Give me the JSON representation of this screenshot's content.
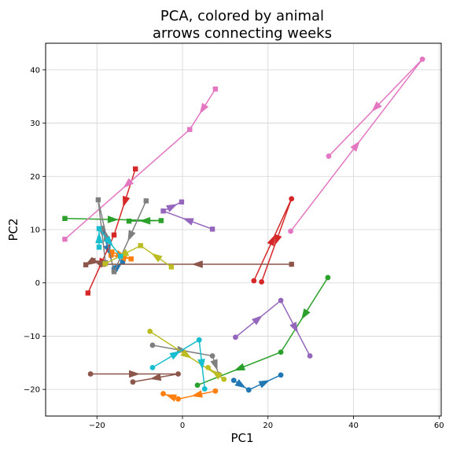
{
  "chart_data": {
    "type": "line",
    "title": "PCA, colored by animal\narrows connecting weeks",
    "xlabel": "PC1",
    "ylabel": "PC2",
    "xlim": [
      -32,
      60.5
    ],
    "ylim": [
      -25,
      45
    ],
    "xticks": [
      -20,
      0,
      20,
      40,
      60
    ],
    "yticks": [
      -20,
      -10,
      0,
      10,
      20,
      30,
      40
    ],
    "grid": true,
    "legend": "none",
    "series": [
      {
        "color": "#1f77b4",
        "marker": "square",
        "points": [
          [
            -18.6,
            9.7
          ],
          [
            -16,
            2.5
          ],
          [
            -14,
            3.9
          ]
        ]
      },
      {
        "color": "#1f77b4",
        "marker": "circle",
        "points": [
          [
            12,
            -18.3
          ],
          [
            15.5,
            -20.1
          ],
          [
            23,
            -17.3
          ]
        ]
      },
      {
        "color": "#ff7f0e",
        "marker": "square",
        "points": [
          [
            -16.5,
            5.8
          ],
          [
            -12,
            4.5
          ],
          [
            -16.7,
            5.2
          ]
        ]
      },
      {
        "color": "#ff7f0e",
        "marker": "circle",
        "points": [
          [
            7.7,
            -20.3
          ],
          [
            -1,
            -21.8
          ],
          [
            -4.5,
            -20.8
          ]
        ]
      },
      {
        "color": "#2ca02c",
        "marker": "square",
        "points": [
          [
            -27.5,
            12.1
          ],
          [
            -5,
            11.7
          ],
          [
            -12.5,
            11.6
          ]
        ]
      },
      {
        "color": "#2ca02c",
        "marker": "circle",
        "points": [
          [
            34,
            1.0
          ],
          [
            23,
            -13
          ],
          [
            3.5,
            -19.2
          ]
        ]
      },
      {
        "color": "#d62728",
        "marker": "square",
        "points": [
          [
            -11,
            21.4
          ],
          [
            -16,
            9.0
          ],
          [
            -22.1,
            -1.9
          ]
        ]
      },
      {
        "color": "#d62728",
        "marker": "circle",
        "points": [
          [
            16.7,
            0.4
          ],
          [
            25.5,
            15.8
          ],
          [
            18.5,
            0.2
          ]
        ]
      },
      {
        "color": "#9467bd",
        "marker": "square",
        "points": [
          [
            7,
            10.1
          ],
          [
            -4.5,
            13.5
          ],
          [
            -0.2,
            15.2
          ]
        ]
      },
      {
        "color": "#9467bd",
        "marker": "circle",
        "points": [
          [
            12.4,
            -10.2
          ],
          [
            23,
            -3.3
          ],
          [
            29.8,
            -13.7
          ]
        ]
      },
      {
        "color": "#8c564b",
        "marker": "square",
        "points": [
          [
            25.5,
            3.5
          ],
          [
            -18.5,
            3.5
          ],
          [
            -20.9,
            4.2
          ],
          [
            -22.6,
            3.4
          ]
        ]
      },
      {
        "color": "#8c564b",
        "marker": "circle",
        "points": [
          [
            -21.5,
            -17.1
          ],
          [
            -1,
            -17.1
          ],
          [
            -11.6,
            -18.6
          ]
        ]
      },
      {
        "color": "#e377c2",
        "marker": "square",
        "points": [
          [
            7.7,
            36.4
          ],
          [
            1.7,
            28.8
          ],
          [
            -27.5,
            8.2
          ]
        ]
      },
      {
        "color": "#e377c2",
        "marker": "circle",
        "points": [
          [
            25.3,
            9.7
          ],
          [
            56.1,
            42.0
          ],
          [
            34.2,
            23.8
          ]
        ]
      },
      {
        "color": "#7f7f7f",
        "marker": "square",
        "points": [
          [
            -8.5,
            15.4
          ],
          [
            -16,
            2.1
          ],
          [
            -19.7,
            15.6
          ],
          [
            -18,
            3.8
          ]
        ]
      },
      {
        "color": "#7f7f7f",
        "marker": "circle",
        "points": [
          [
            -7,
            -11.7
          ],
          [
            7,
            -13.7
          ],
          [
            8.5,
            -17.2
          ]
        ]
      },
      {
        "color": "#bcbd22",
        "marker": "square",
        "points": [
          [
            -2.6,
            3.0
          ],
          [
            -9.8,
            7.0
          ],
          [
            -18.1,
            3.6
          ]
        ]
      },
      {
        "color": "#bcbd22",
        "marker": "circle",
        "points": [
          [
            -7.6,
            -9.1
          ],
          [
            9.7,
            -18.1
          ],
          [
            6,
            -15.9
          ]
        ]
      },
      {
        "color": "#17becf",
        "marker": "square",
        "points": [
          [
            -19.5,
            6.7
          ],
          [
            -19.5,
            10.2
          ],
          [
            -14.5,
            5.0
          ]
        ]
      },
      {
        "color": "#17becf",
        "marker": "circle",
        "points": [
          [
            -7,
            -15.9
          ],
          [
            3.9,
            -10.7
          ],
          [
            5.2,
            -19.9
          ]
        ]
      }
    ]
  }
}
